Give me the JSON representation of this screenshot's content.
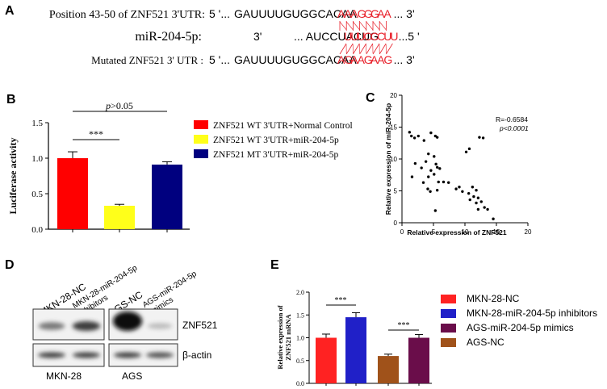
{
  "panels": {
    "a": {
      "letter": "A",
      "rows": [
        {
          "label": "Position 43-50 of ZNF521  3'UTR:",
          "prefix": "5 '...",
          "black": "GAUUUUGUGGCACAA",
          "red": "AAAGGGAA",
          "suffix": "... 3'"
        },
        {
          "label": "miR-204-5p:",
          "prefix": "3'",
          "black": "...  AUCCUACUG",
          "red": "UUUCCCUU",
          "suffix": "...5 '"
        },
        {
          "label": "Mutated ZNF521 3' UTR :",
          "prefix": "5 '...",
          "black": "GAUUUUGUGGCACAA",
          "red": "AGAAGAAG",
          "suffix": "... 3'"
        }
      ],
      "colors": {
        "match": "#e8202a",
        "text": "#000000"
      }
    },
    "b": {
      "letter": "B"
    },
    "c": {
      "letter": "C"
    },
    "d": {
      "letter": "D",
      "lane_labels": [
        "MKN-28-NC",
        "MKN-28-miR-204-5p inhibitors",
        "AGS-NC",
        "AGS-miR-204-5p mimics"
      ],
      "protein_labels": [
        "ZNF521",
        "β-actin"
      ],
      "group_labels": [
        "MKN-28",
        "AGS"
      ],
      "znf521_levels": [
        0.45,
        0.75,
        1.0,
        0.12
      ],
      "actin_levels": [
        0.8,
        0.8,
        0.8,
        0.7
      ]
    },
    "e": {
      "letter": "E"
    }
  },
  "chart_data": [
    {
      "type": "bar",
      "categories": [
        "ZNF521 WT 3'UTR+Normal Control",
        "ZNF521 WT 3'UTR+miR-204-5p",
        "ZNF521 MT 3'UTR+miR-204-5p"
      ],
      "values": [
        1.0,
        0.33,
        0.91
      ],
      "errors": [
        0.09,
        0.02,
        0.04
      ],
      "colors": [
        "#ff0000",
        "#ffff1a",
        "#00007f"
      ],
      "ylabel": "Luciferase activity",
      "ylim": [
        0,
        1.5
      ],
      "yticks": [
        "0.0",
        "0.5",
        "1.0",
        "1.5"
      ],
      "legend": [
        "ZNF521 WT 3'UTR+Normal Control",
        "ZNF521 WT 3'UTR+miR-204-5p",
        "ZNF521 MT 3'UTR+miR-204-5p"
      ],
      "annotations": [
        "***",
        "p>0.05"
      ],
      "legend_position": "right"
    },
    {
      "type": "scatter",
      "xlabel": "Relative  expression of ZNF521",
      "ylabel": "Relative expression of miR-204-5p",
      "xlim": [
        0,
        20
      ],
      "ylim": [
        0,
        20
      ],
      "xticks": [
        "0",
        "5",
        "10",
        "15",
        "20"
      ],
      "yticks": [
        "0",
        "5",
        "10",
        "15",
        "20"
      ],
      "annotation_r": "R=-0.6584",
      "annotation_p": "p<0.0001",
      "points": [
        [
          1.2,
          14.2
        ],
        [
          1.5,
          13.6
        ],
        [
          2.0,
          13.3
        ],
        [
          2.6,
          13.6
        ],
        [
          3.5,
          12.9
        ],
        [
          4.6,
          14.1
        ],
        [
          5.3,
          13.6
        ],
        [
          5.6,
          13.4
        ],
        [
          4.2,
          10.8
        ],
        [
          5.1,
          10.4
        ],
        [
          3.8,
          9.6
        ],
        [
          5.4,
          9.2
        ],
        [
          5.6,
          8.7
        ],
        [
          4.6,
          8.2
        ],
        [
          6.0,
          8.5
        ],
        [
          5.1,
          7.6
        ],
        [
          3.1,
          8.6
        ],
        [
          4.2,
          7.2
        ],
        [
          5.8,
          6.4
        ],
        [
          6.6,
          6.4
        ],
        [
          7.4,
          6.3
        ],
        [
          2.1,
          9.3
        ],
        [
          3.4,
          6.3
        ],
        [
          1.6,
          7.2
        ],
        [
          4.1,
          5.3
        ],
        [
          5.6,
          5.1
        ],
        [
          10.2,
          11.1
        ],
        [
          10.7,
          11.6
        ],
        [
          12.3,
          13.4
        ],
        [
          12.9,
          13.3
        ],
        [
          9.1,
          5.6
        ],
        [
          8.6,
          5.3
        ],
        [
          9.6,
          4.9
        ],
        [
          10.6,
          4.6
        ],
        [
          11.2,
          5.6
        ],
        [
          11.8,
          5.1
        ],
        [
          10.8,
          3.6
        ],
        [
          11.8,
          3.1
        ],
        [
          12.6,
          3.3
        ],
        [
          13.1,
          2.4
        ],
        [
          12.1,
          2.1
        ],
        [
          13.6,
          2.1
        ],
        [
          14.5,
          0.6
        ],
        [
          12.1,
          3.9
        ],
        [
          5.3,
          1.9
        ],
        [
          4.5,
          4.9
        ],
        [
          11.4,
          4.1
        ]
      ]
    },
    {
      "type": "bar",
      "categories": [
        "MKN-28-NC",
        "MKN-28-miR-204-5p inhibitors",
        "AGS-NC",
        "AGS-miR-204-5p mimics"
      ],
      "values": [
        1.0,
        1.45,
        0.6,
        1.0
      ],
      "errors": [
        0.08,
        0.1,
        0.04,
        0.07
      ],
      "colors": [
        "#ff2222",
        "#2020c8",
        "#a0521a",
        "#6a0d4a"
      ],
      "ylabel": "Relative expression of ZNF521 mRNA",
      "ylim": [
        0,
        2.0
      ],
      "yticks": [
        "0.0",
        "0.5",
        "1.0",
        "1.5",
        "2.0"
      ],
      "legend": [
        {
          "label": "MKN-28-NC",
          "color": "#ff2222"
        },
        {
          "label": "MKN-28-miR-204-5p inhibitors",
          "color": "#2020c8"
        },
        {
          "label": "AGS-miR-204-5p mimics",
          "color": "#6a0d4a"
        },
        {
          "label": "AGS-NC",
          "color": "#a0521a"
        }
      ],
      "annotations": [
        "***",
        "***"
      ],
      "legend_position": "right"
    }
  ]
}
